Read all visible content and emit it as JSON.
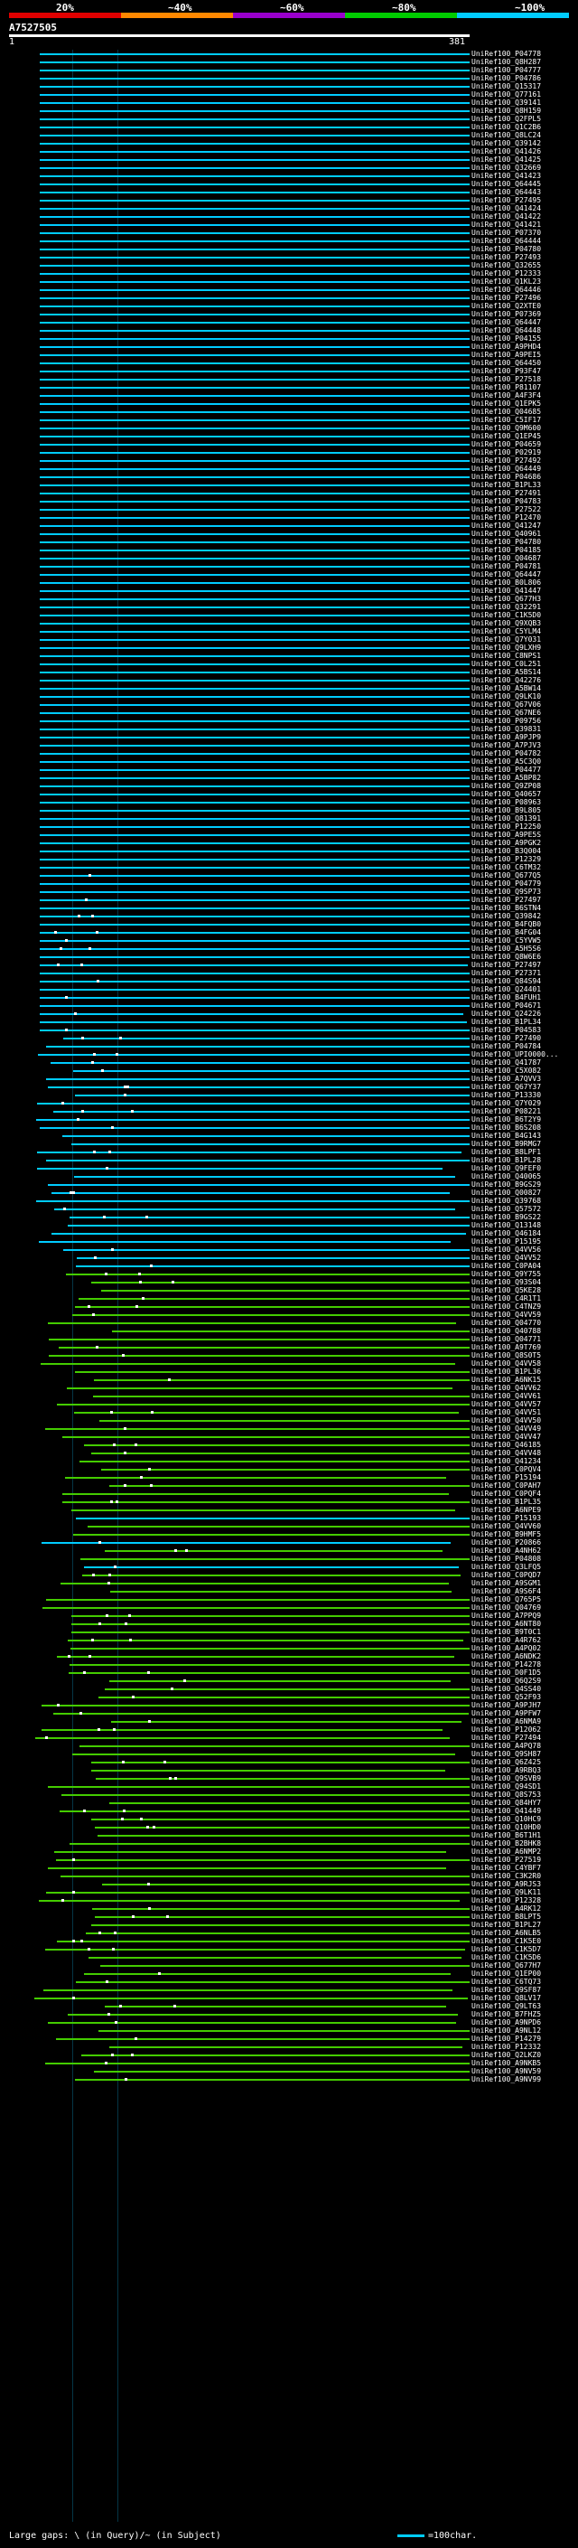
{
  "scale": {
    "labels": [
      "20%",
      "~40%",
      "~60%",
      "~80%",
      "~100%"
    ],
    "colors": [
      "#e00000",
      "#ff8800",
      "#9900cc",
      "#00cc00",
      "#00ccff"
    ]
  },
  "query": {
    "id": "A7527505",
    "start": "1",
    "end": "381"
  },
  "legend": {
    "large_gaps": "Large gaps: \\ (in Query)/~ (in Subject)",
    "scale_note": "=100char."
  },
  "colors": {
    "cyan": "#00ccff",
    "green": "#44cc00"
  },
  "hits": [
    "UniRef100_P04778",
    "UniRef100_Q8H287",
    "UniRef100_P04777",
    "UniRef100_P04786",
    "UniRef100_Q15317",
    "UniRef100_Q77161",
    "UniRef100_Q39141",
    "UniRef100_Q8H159",
    "UniRef100_Q2FPL5",
    "UniRef100_Q1C2B6",
    "UniRef100_Q8LC24",
    "UniRef100_Q39142",
    "UniRef100_Q41426",
    "UniRef100_Q41425",
    "UniRef100_Q32669",
    "UniRef100_Q41423",
    "UniRef100_Q64445",
    "UniRef100_Q64443",
    "UniRef100_P27495",
    "UniRef100_Q41424",
    "UniRef100_Q41422",
    "UniRef100_Q41421",
    "UniRef100_P07370",
    "UniRef100_Q64444",
    "UniRef100_P04780",
    "UniRef100_P27493",
    "UniRef100_Q32655",
    "UniRef100_P12333",
    "UniRef100_Q1KL23",
    "UniRef100_Q64446",
    "UniRef100_P27496",
    "UniRef100_Q2XTE0",
    "UniRef100_P07369",
    "UniRef100_Q64447",
    "UniRef100_Q64448",
    "UniRef100_P04155",
    "UniRef100_A9PHD4",
    "UniRef100_A9PEI5",
    "UniRef100_Q64450",
    "UniRef100_P93F47",
    "UniRef100_P27518",
    "UniRef100_P81107",
    "UniRef100_A4F3F4",
    "UniRef100_Q1EPK5",
    "UniRef100_Q04685",
    "UniRef100_C5IF17",
    "UniRef100_Q9M600",
    "UniRef100_Q1EP45",
    "UniRef100_P04659",
    "UniRef100_P02919",
    "UniRef100_P27492",
    "UniRef100_Q64449",
    "UniRef100_P04686",
    "UniRef100_B1PL33",
    "UniRef100_P27491",
    "UniRef100_P04783",
    "UniRef100_P27522",
    "UniRef100_P12470",
    "UniRef100_Q41247",
    "UniRef100_Q40961",
    "UniRef100_P04780",
    "UniRef100_P04185",
    "UniRef100_Q04687",
    "UniRef100_P04781",
    "UniRef100_Q64447",
    "UniRef100_B0L806",
    "UniRef100_Q41447",
    "UniRef100_Q677H3",
    "UniRef100_Q32291",
    "UniRef100_C1K5D0",
    "UniRef100_Q9XQB3",
    "UniRef100_C5YLM4",
    "UniRef100_Q7Y031",
    "UniRef100_Q9LXH9",
    "UniRef100_C8NPS1",
    "UniRef100_C0L251",
    "UniRef100_A5BS14",
    "UniRef100_Q42276",
    "UniRef100_A5BW14",
    "UniRef100_Q9LK10",
    "UniRef100_Q67V06",
    "UniRef100_Q67NE6",
    "UniRef100_P09756",
    "UniRef100_Q39831",
    "UniRef100_A9PJP9",
    "UniRef100_A7PJV3",
    "UniRef100_P04782",
    "UniRef100_A5C3Q0",
    "UniRef100_P04477",
    "UniRef100_A5BP82",
    "UniRef100_Q9ZP08",
    "UniRef100_Q40657",
    "UniRef100_P08963",
    "UniRef100_B9L805",
    "UniRef100_Q81391",
    "UniRef100_P12250",
    "UniRef100_A9PE5S",
    "UniRef100_A9PGK2",
    "UniRef100_B3Q004",
    "UniRef100_P12329",
    "UniRef100_C6TM32",
    "UniRef100_Q677Q5",
    "UniRef100_P04779",
    "UniRef100_Q9SP73",
    "UniRef100_P27497",
    "UniRef100_B6STN4",
    "UniRef100_Q39842",
    "UniRef100_B4FQB0",
    "UniRef100_B4FG04",
    "UniRef100_C5YVW5",
    "UniRef100_A5H5S6",
    "UniRef100_Q8W6E6",
    "UniRef100_P27497",
    "UniRef100_P27371",
    "UniRef100_Q84S94",
    "UniRef100_Q24401",
    "UniRef100_B4FUH1",
    "UniRef100_P04671",
    "UniRef100_Q24226",
    "UniRef100_B1PL34",
    "UniRef100_P04583",
    "UniRef100_P27490",
    "UniRef100_P04784",
    "UniRef100_UPI0000...",
    "UniRef100_Q41787",
    "UniRef100_C5X082",
    "UniRef100_A7QVV3",
    "UniRef100_Q67Y37",
    "UniRef100_P13330",
    "UniRef100_Q7Y029",
    "UniRef100_P08221",
    "UniRef100_B6T2Y9",
    "UniRef100_B6S208",
    "UniRef100_B4G143",
    "UniRef100_B9RMG7",
    "UniRef100_B8LPF1",
    "UniRef100_B1PL28",
    "UniRef100_Q9FEF0",
    "UniRef100_Q40065",
    "UniRef100_B9GS29",
    "UniRef100_Q00827",
    "UniRef100_Q39768",
    "UniRef100_Q57572",
    "UniRef100_B9GS22",
    "UniRef100_Q13148",
    "UniRef100_Q46184",
    "UniRef100_P15195",
    "UniRef100_Q4VV56",
    "UniRef100_Q4VV52",
    "UniRef100_C0PA04",
    "UniRef100_Q9Y755",
    "UniRef100_Q93S04",
    "UniRef100_Q5KE28",
    "UniRef100_C4R1T1",
    "UniRef100_C4TNZ9",
    "UniRef100_Q4VV59",
    "UniRef100_Q04770",
    "UniRef100_Q40788",
    "UniRef100_Q04771",
    "UniRef100_A9T769",
    "UniRef100_Q8S0T5",
    "UniRef100_Q4VV58",
    "UniRef100_B1PL36",
    "UniRef100_A6NK15",
    "UniRef100_Q4VV62",
    "UniRef100_Q4VV61",
    "UniRef100_Q4VV57",
    "UniRef100_Q4VV51",
    "UniRef100_Q4VV50",
    "UniRef100_Q4VV49",
    "UniRef100_Q4VV47",
    "UniRef100_Q46185",
    "UniRef100_Q4VV48",
    "UniRef100_Q41234",
    "UniRef100_C0PQV4",
    "UniRef100_P15194",
    "UniRef100_C0PAH7",
    "UniRef100_C0PQF4",
    "UniRef100_B1PL35",
    "UniRef100_A6NPE9",
    "UniRef100_P15193",
    "UniRef100_Q4VV60",
    "UniRef100_B9HMF5",
    "UniRef100_P20866",
    "UniRef100_A4NH62",
    "UniRef100_P04808",
    "UniRef100_Q3LFQ5",
    "UniRef100_C0PQD7",
    "UniRef100_A9SGM1",
    "UniRef100_A9S6F4",
    "UniRef100_Q765P5",
    "UniRef100_Q04769",
    "UniRef100_A7PPQ9",
    "UniRef100_A6NT80",
    "UniRef100_B9T0C1",
    "UniRef100_A4R762",
    "UniRef100_A4PQ02",
    "UniRef100_A6NDK2",
    "UniRef100_P14278",
    "UniRef100_D0F1D5",
    "UniRef100_Q6Q2S9",
    "UniRef100_Q4SS40",
    "UniRef100_Q52F93",
    "UniRef100_A9PJH7",
    "UniRef100_A9PFW7",
    "UniRef100_A6NMA9",
    "UniRef100_P12062",
    "UniRef100_P27494",
    "UniRef100_A4PQ78",
    "UniRef100_Q9SH87",
    "UniRef100_Q6Z425",
    "UniRef100_A9RBQ3",
    "UniRef100_Q9SVB9",
    "UniRef100_Q94SD1",
    "UniRef100_Q8S753",
    "UniRef100_Q84HY7",
    "UniRef100_Q41449",
    "UniRef100_Q10HC9",
    "UniRef100_Q10HD0",
    "UniRef100_B6T1H1",
    "UniRef100_B2BHK8",
    "UniRef100_A6NMP2",
    "UniRef100_P27519",
    "UniRef100_C4YBF7",
    "UniRef100_C3K2R0",
    "UniRef100_A9RJS3",
    "UniRef100_Q9LK11",
    "UniRef100_P12328",
    "UniRef100_A4RK12",
    "UniRef100_B8LPT5",
    "UniRef100_B1PL27",
    "UniRef100_A6NLB5",
    "UniRef100_C1K5E0",
    "UniRef100_C1K5D7",
    "UniRef100_C1K5D6",
    "UniRef100_Q677H7",
    "UniRef100_Q1EP00",
    "UniRef100_C6TQ73",
    "UniRef100_Q9SF87",
    "UniRef100_Q8LV17",
    "UniRef100_Q9LT63",
    "UniRef100_B7FHZ5",
    "UniRef100_A9NPD6",
    "UniRef100_A9NL12",
    "UniRef100_P14279",
    "UniRef100_P12332",
    "UniRef100_Q2LKZ0",
    "UniRef100_A9NKB5",
    "UniRef100_A9NV59",
    "UniRef100_A9NV99"
  ]
}
